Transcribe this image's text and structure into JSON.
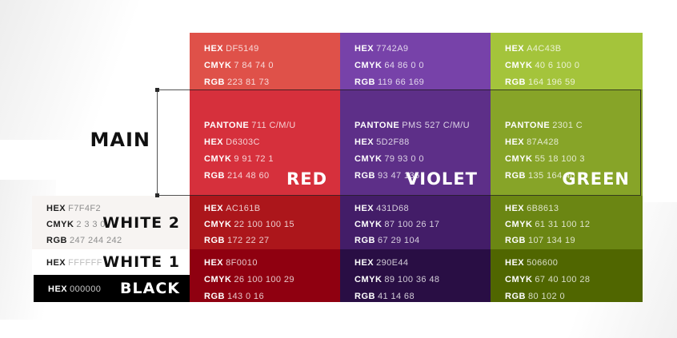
{
  "title_labels": {
    "main": "MAIN"
  },
  "field_labels": {
    "pantone": "PANTONE",
    "hex": "HEX",
    "cmyk": "CMYK",
    "rgb": "RGB"
  },
  "columns": [
    {
      "name": "RED",
      "tint": {
        "bg": "#DF5149",
        "hex": "DF5149",
        "cmyk": "7 84 74 0",
        "rgb": "223 81 73"
      },
      "main": {
        "bg": "#D6303C",
        "pantone": "711 C/M/U",
        "hex": "D6303C",
        "cmyk": "9 91 72 1",
        "rgb": "214 48 60"
      },
      "dark": {
        "bg": "#AC161B",
        "hex": "AC161B",
        "cmyk": "22 100 100 15",
        "rgb": "172 22 27"
      },
      "darkest": {
        "bg": "#8F0010",
        "hex": "8F0010",
        "cmyk": "26 100 100 29",
        "rgb": "143 0 16"
      }
    },
    {
      "name": "VIOLET",
      "tint": {
        "bg": "#7742A9",
        "hex": "7742A9",
        "cmyk": "64 86 0 0",
        "rgb": "119 66 169"
      },
      "main": {
        "bg": "#5D2F88",
        "pantone": "PMS 527 C/M/U",
        "hex": "5D2F88",
        "cmyk": "79 93 0 0",
        "rgb": "93 47 136"
      },
      "dark": {
        "bg": "#431D68",
        "hex": "431D68",
        "cmyk": "87 100 26 17",
        "rgb": "67 29 104"
      },
      "darkest": {
        "bg": "#290E44",
        "hex": "290E44",
        "cmyk": "89 100 36 48",
        "rgb": "41 14 68"
      }
    },
    {
      "name": "GREEN",
      "tint": {
        "bg": "#A4C43B",
        "hex": "A4C43B",
        "cmyk": "40 6 100 0",
        "rgb": "164 196 59"
      },
      "main": {
        "bg": "#87A428",
        "pantone": "2301 C",
        "hex": "87A428",
        "cmyk": "55 18 100 3",
        "rgb": "135 164 40"
      },
      "dark": {
        "bg": "#6B8613",
        "hex": "6B8613",
        "cmyk": "61 31 100 12",
        "rgb": "107 134 19"
      },
      "darkest": {
        "bg": "#506600",
        "hex": "506600",
        "cmyk": "67 40 100 28",
        "rgb": "80 102 0"
      }
    }
  ],
  "neutrals": {
    "white2": {
      "bg": "#F7F4F2",
      "label": "WHITE 2",
      "hex": "F7F4F2",
      "cmyk": "2 3 3 0",
      "rgb": "247 244 242"
    },
    "white1": {
      "bg": "#FFFFFF",
      "label": "WHITE 1",
      "hex": "FFFFFF"
    },
    "black": {
      "bg": "#000000",
      "label": "BLACK",
      "hex": "000000"
    }
  }
}
